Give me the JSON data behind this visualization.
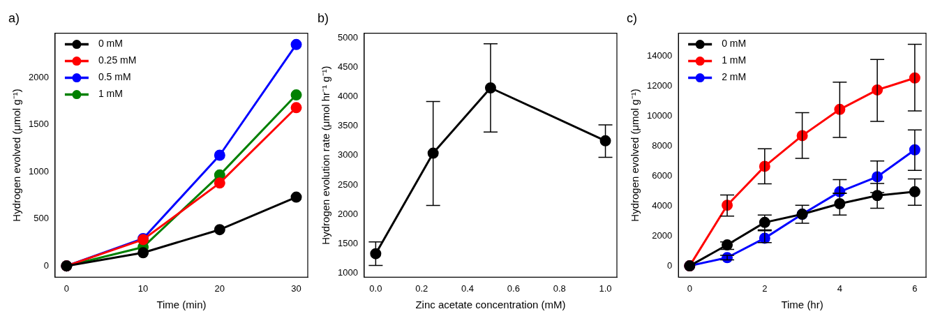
{
  "chart_data": [
    {
      "type": "line",
      "title": "a)",
      "xlabel": "Time (min)",
      "ylabel": "Hydrogen evolved (μmol g⁻¹)",
      "x": [
        0,
        10,
        20,
        30
      ],
      "xlim": [
        -1.5,
        31.5
      ],
      "ylim": [
        -120,
        2470
      ],
      "xticks": [
        0,
        10,
        20,
        30
      ],
      "yticks": [
        0,
        500,
        1000,
        1500,
        2000
      ],
      "legend": "top left",
      "marker": "circle",
      "line_style": "solid",
      "series": [
        {
          "name": "0 mM",
          "color": "#000000",
          "values": [
            0,
            140,
            385,
            730
          ]
        },
        {
          "name": "0.25 mM",
          "color": "#ff0000",
          "values": [
            0,
            280,
            880,
            1680
          ]
        },
        {
          "name": "0.5 mM",
          "color": "#0000ff",
          "values": [
            0,
            290,
            1175,
            2350
          ]
        },
        {
          "name": "1 mM",
          "color": "#008000",
          "values": [
            0,
            200,
            965,
            1815
          ]
        }
      ]
    },
    {
      "type": "line",
      "title": "b)",
      "xlabel": "Zinc acetate concentration (mM)",
      "ylabel": "Hydrogen evolution rate (μmol hr⁻¹ g⁻¹)",
      "x": [
        0,
        0.25,
        0.5,
        1.0
      ],
      "xlim": [
        -0.05,
        1.05
      ],
      "ylim": [
        930,
        5080
      ],
      "xticks": [
        {
          "value": 0,
          "label": "0.0"
        },
        {
          "value": 0.2,
          "label": "0.2"
        },
        {
          "value": 0.4,
          "label": "0.4"
        },
        {
          "value": 0.6,
          "label": "0.6"
        },
        {
          "value": 0.8,
          "label": "0.8"
        },
        {
          "value": 1,
          "label": "1.0"
        }
      ],
      "yticks": [
        1000,
        1500,
        2000,
        2500,
        3000,
        3500,
        4000,
        4500,
        5000
      ],
      "marker": "circle",
      "line_style": "solid",
      "series": [
        {
          "color": "#000000",
          "values": [
            1330,
            3040,
            4150,
            3250
          ],
          "errors": [
            [
              1130,
              1530
            ],
            [
              2150,
              3920
            ],
            [
              3400,
              4900
            ],
            [
              2970,
              3520
            ]
          ]
        }
      ]
    },
    {
      "type": "line",
      "title": "c)",
      "xlabel": "Time (hr)",
      "ylabel": "Hydrogen evolved (μmol g⁻¹)",
      "x": [
        0,
        1,
        2,
        3,
        4,
        5,
        6
      ],
      "xlim": [
        -0.3,
        6.3
      ],
      "ylim": [
        -760,
        15540
      ],
      "xticks": [
        0,
        2,
        4,
        6
      ],
      "yticks": [
        0,
        2000,
        4000,
        6000,
        8000,
        10000,
        12000,
        14000
      ],
      "legend": "top left",
      "marker": "circle",
      "line_style": "solid",
      "series": [
        {
          "name": "0 mM",
          "color": "#000000",
          "values": [
            0,
            1400,
            2900,
            3450,
            4150,
            4700,
            4950
          ],
          "errors": [
            null,
            [
              1100,
              1600
            ],
            [
              2400,
              3400
            ],
            [
              2850,
              4050
            ],
            [
              3400,
              4850
            ],
            [
              3850,
              5500
            ],
            [
              4050,
              5800
            ]
          ]
        },
        {
          "name": "1 mM",
          "color": "#ff0000",
          "values": [
            0,
            4050,
            6650,
            8700,
            10450,
            11750,
            12550
          ],
          "errors": [
            null,
            [
              3330,
              4730
            ],
            [
              5480,
              7820
            ],
            [
              7180,
              10230
            ],
            [
              8580,
              12270
            ],
            [
              9650,
              13790
            ],
            [
              10350,
              14800
            ]
          ]
        },
        {
          "name": "2 mM",
          "color": "#0000ff",
          "values": [
            0,
            550,
            1850,
            3450,
            4950,
            5950,
            7750
          ],
          "errors": [
            null,
            [
              400,
              700
            ],
            [
              1550,
              2350
            ],
            null,
            [
              4840,
              5760
            ],
            [
              4900,
              7000
            ],
            [
              6380,
              9080
            ]
          ]
        }
      ]
    }
  ]
}
